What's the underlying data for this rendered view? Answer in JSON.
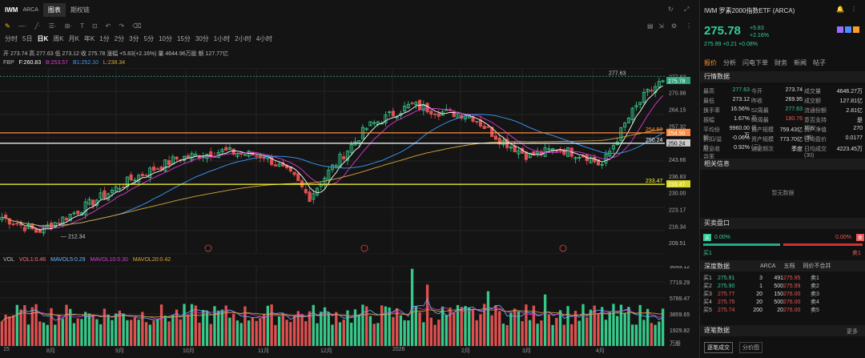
{
  "tabs": [
    {
      "label": "IWM"
    },
    {
      "label": "ARCA"
    },
    {
      "label": "图表"
    },
    {
      "label": "期权链"
    }
  ],
  "toolbar": {
    "icons": [
      "cursor-icon",
      "draw-icon",
      "line-icon",
      "text-icon",
      "fib-icon",
      "shapes-icon",
      "undo-icon",
      "redo-icon",
      "clear-icon"
    ]
  },
  "periods": [
    "分时",
    "5日",
    "日K",
    "周K",
    "月K",
    "年K",
    "1分",
    "2分",
    "3分",
    "5分",
    "10分",
    "15分",
    "30分",
    "1小时",
    "2小时",
    "4小时"
  ],
  "quote_line": "开 273.74 高 277.63 低 273.12 收 275.78 涨幅 +5.83(+2.16%) 量 4644.96万股 额 127.77亿",
  "ma": {
    "prefix": "FBP",
    "f": "F:260.83",
    "b1": "B:253.57",
    "b2": "B1:252.10",
    "l": "L:238.34"
  },
  "vol": {
    "title": "VOL",
    "v1": "VOL1:0.46",
    "v2": "MAVOL5:0.29",
    "v3": "MAVOL10:0.30",
    "v4": "MAVOL20:0.42"
  },
  "price_axis": [
    "277.63",
    "270.98",
    "264.15",
    "257.32",
    "250.49",
    "243.66",
    "236.83",
    "230.00",
    "223.17",
    "216.34",
    "209.51"
  ],
  "vol_axis": [
    "9649.12",
    "7719.29",
    "5789.47",
    "3859.65",
    "1929.82",
    "万股"
  ],
  "levels": [
    {
      "label": "254.50",
      "color": "#ff8c42"
    },
    {
      "label": "250.24",
      "color": "#ffffff"
    },
    {
      "label": "233.47",
      "color": "#ffff33"
    }
  ],
  "last_price_tag": "275.78",
  "high_tag": "277.63",
  "low_tag": "212.34",
  "x_axis": [
    "15",
    "8月",
    "9月",
    "10月",
    "11月",
    "12月",
    "2026",
    "2月",
    "3月",
    "4月"
  ],
  "right": {
    "title": "IWM 罗素2000指数ETF (ARCA)",
    "price": "275.78",
    "change": "+5.83",
    "pct": "+2.16%",
    "after": "275.99 +0.21 +0.08%",
    "tabs": [
      "报价",
      "分析",
      "闪电下单",
      "财务",
      "新闻",
      "帖子"
    ],
    "section_quote": "行情数据",
    "stats": [
      [
        "最高",
        "277.63",
        "今开",
        "273.74",
        "成交量",
        "4646.27万"
      ],
      [
        "最低",
        "273.12",
        "昨收",
        "269.95",
        "成交额",
        "127.81亿"
      ],
      [
        "换手率",
        "16.56%",
        "52周最高",
        "277.63",
        "流通份额",
        "2.81亿"
      ],
      [
        "振幅",
        "1.67%",
        "52周最低",
        "180.76",
        "意否支持期权",
        "是"
      ],
      [
        "平均份额",
        "9960.00万",
        "资产规模",
        "759.43亿",
        "资产净值(美)",
        "270"
      ],
      [
        "折扣/溢价",
        "-0.06%",
        "资产规模(元)",
        "773.70亿",
        "日均盈价",
        "0.0177"
      ],
      [
        "股息收益率",
        "0.92%",
        "派息频次",
        "季度",
        "日均成交(30)",
        "4223.45万"
      ]
    ],
    "section_related": "相关信息",
    "no_data": "暂无数据",
    "section_buysell": "买卖盘口",
    "buy_pct": "0.00%",
    "sell_pct": "0.00%",
    "buy_label": "买1",
    "sell_label": "卖1",
    "section_depth": "深度数据",
    "depth_exchange": "ARCA",
    "depth_level": "五档",
    "depth_merge": "同价不合并",
    "bids": [
      [
        "买1",
        "275.91",
        "3",
        "491",
        "275.95",
        "卖1"
      ],
      [
        "买2",
        "275.90",
        "1",
        "500",
        "275.99",
        "卖2"
      ],
      [
        "买3",
        "275.77",
        "20",
        "150",
        "276.00",
        "卖3"
      ],
      [
        "买4",
        "275.75",
        "20",
        "500",
        "276.00",
        "卖4"
      ],
      [
        "买5",
        "275.74",
        "200",
        "20",
        "276.00",
        "卖5"
      ]
    ],
    "section_trades": "逐笔数据",
    "more": "更多",
    "btn1": "逐笔成交",
    "btn2": "分价图"
  },
  "colors": {
    "up": "#e05050",
    "down": "#36c98a",
    "ma5": "#ffffff",
    "ma10": "#d83bd3",
    "ma20": "#3b9cff",
    "ma60": "#d6a63c"
  }
}
